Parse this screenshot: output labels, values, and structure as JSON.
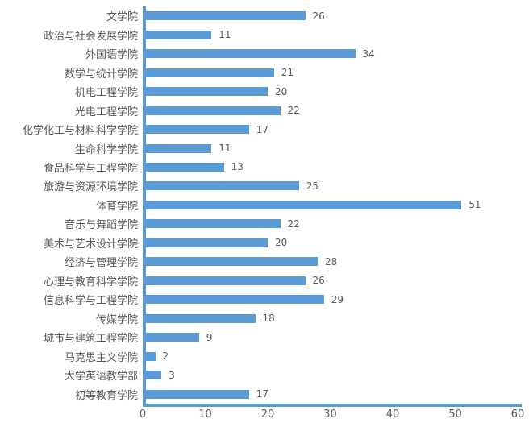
{
  "chart_data": {
    "type": "bar",
    "orientation": "horizontal",
    "title": "",
    "categories": [
      "文学院",
      "政治与社会发展学院",
      "外国语学院",
      "数学与统计学院",
      "机电工程学院",
      "光电工程学院",
      "化学化工与材料科学学院",
      "生命科学学院",
      "食品科学与工程学院",
      "旅游与资源环境学院",
      "体育学院",
      "音乐与舞蹈学院",
      "美术与艺术设计学院",
      "经济与管理学院",
      "心理与教育科学学院",
      "信息科学与工程学院",
      "传媒学院",
      "城市与建筑工程学院",
      "马克思主义学院",
      "大学英语教学部",
      "初等教育学院"
    ],
    "values": [
      26,
      11,
      34,
      21,
      20,
      22,
      17,
      11,
      13,
      25,
      51,
      22,
      20,
      28,
      26,
      29,
      18,
      9,
      2,
      3,
      17
    ],
    "xlabel": "",
    "ylabel": "",
    "xlim": [
      0,
      60
    ],
    "x_ticks": [
      0,
      10,
      20,
      30,
      40,
      50,
      60
    ],
    "grid": false,
    "legend": false,
    "data_labels": true,
    "colors": {
      "bar": "#5B9BD5",
      "axis": "#5B9BD5",
      "text": "#595959",
      "background": "#FFFFFF"
    }
  }
}
